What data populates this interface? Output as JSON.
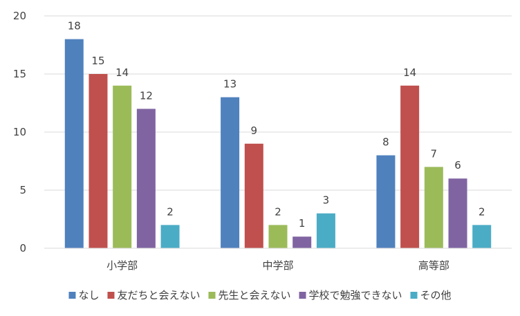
{
  "chart_data": {
    "type": "bar",
    "categories": [
      "小学部",
      "中学部",
      "高等部"
    ],
    "series": [
      {
        "name": "なし",
        "color": "#4F81BD",
        "values": [
          18,
          13,
          8
        ]
      },
      {
        "name": "友だちと会えない",
        "color": "#C0504D",
        "values": [
          15,
          9,
          14
        ]
      },
      {
        "name": "先生と会えない",
        "color": "#9BBB59",
        "values": [
          14,
          2,
          7
        ]
      },
      {
        "name": "学校で勉強できない",
        "color": "#8064A2",
        "values": [
          12,
          1,
          6
        ]
      },
      {
        "name": "その他",
        "color": "#4BACC6",
        "values": [
          2,
          3,
          2
        ]
      }
    ],
    "ylim": [
      0,
      20
    ],
    "yticks": [
      0,
      5,
      10,
      15,
      20
    ],
    "grid": true,
    "legend_position": "bottom",
    "data_labels": true
  }
}
